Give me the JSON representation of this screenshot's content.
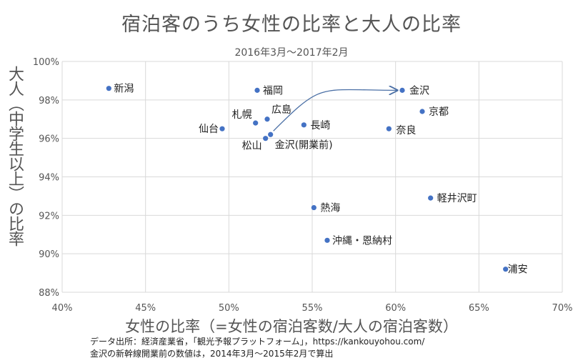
{
  "chart_data": {
    "type": "scatter",
    "title": "宿泊客のうち女性の比率と大人の比率",
    "subtitle": "2016年3月～2017年2月",
    "xlabel": "女性の比率（=女性の宿泊客数/大人の宿泊客数）",
    "ylabel": "大人（中学生以上）の比率",
    "xlim": [
      0.4,
      0.7
    ],
    "ylim": [
      0.88,
      1.0
    ],
    "x_ticks": [
      0.4,
      0.45,
      0.5,
      0.55,
      0.6,
      0.65,
      0.7
    ],
    "x_tick_labels": [
      "40%",
      "45%",
      "50%",
      "55%",
      "60%",
      "65%",
      "70%"
    ],
    "y_ticks": [
      0.88,
      0.9,
      0.92,
      0.94,
      0.96,
      0.98,
      1.0
    ],
    "y_tick_labels": [
      "88%",
      "90%",
      "92%",
      "94%",
      "96%",
      "98%",
      "100%"
    ],
    "grid": true,
    "point_color": "#4472c4",
    "points": [
      {
        "label": "新潟",
        "x": 0.428,
        "y": 0.986
      },
      {
        "label": "福岡",
        "x": 0.517,
        "y": 0.985
      },
      {
        "label": "金沢",
        "x": 0.604,
        "y": 0.985
      },
      {
        "label": "京都",
        "x": 0.616,
        "y": 0.974
      },
      {
        "label": "広島",
        "x": 0.523,
        "y": 0.97
      },
      {
        "label": "札幌",
        "x": 0.516,
        "y": 0.968
      },
      {
        "label": "長崎",
        "x": 0.545,
        "y": 0.967
      },
      {
        "label": "仙台",
        "x": 0.496,
        "y": 0.965
      },
      {
        "label": "奈良",
        "x": 0.596,
        "y": 0.965
      },
      {
        "label": "金沢(開業前)",
        "x": 0.525,
        "y": 0.962
      },
      {
        "label": "松山",
        "x": 0.522,
        "y": 0.96
      },
      {
        "label": "軽井沢町",
        "x": 0.621,
        "y": 0.929
      },
      {
        "label": "熱海",
        "x": 0.551,
        "y": 0.924
      },
      {
        "label": "沖縄・恩納村",
        "x": 0.559,
        "y": 0.907
      },
      {
        "label": "浦安",
        "x": 0.666,
        "y": 0.892
      }
    ],
    "arrow": {
      "from": "金沢(開業前)",
      "to": "金沢"
    }
  },
  "source": {
    "line1": "データ出所：経済産業省，「観光予報プラットフォーム」，https://kankouyohou.com/",
    "line2": "金沢の新幹線開業前の数値は，2014年3月～2015年2月で算出"
  }
}
